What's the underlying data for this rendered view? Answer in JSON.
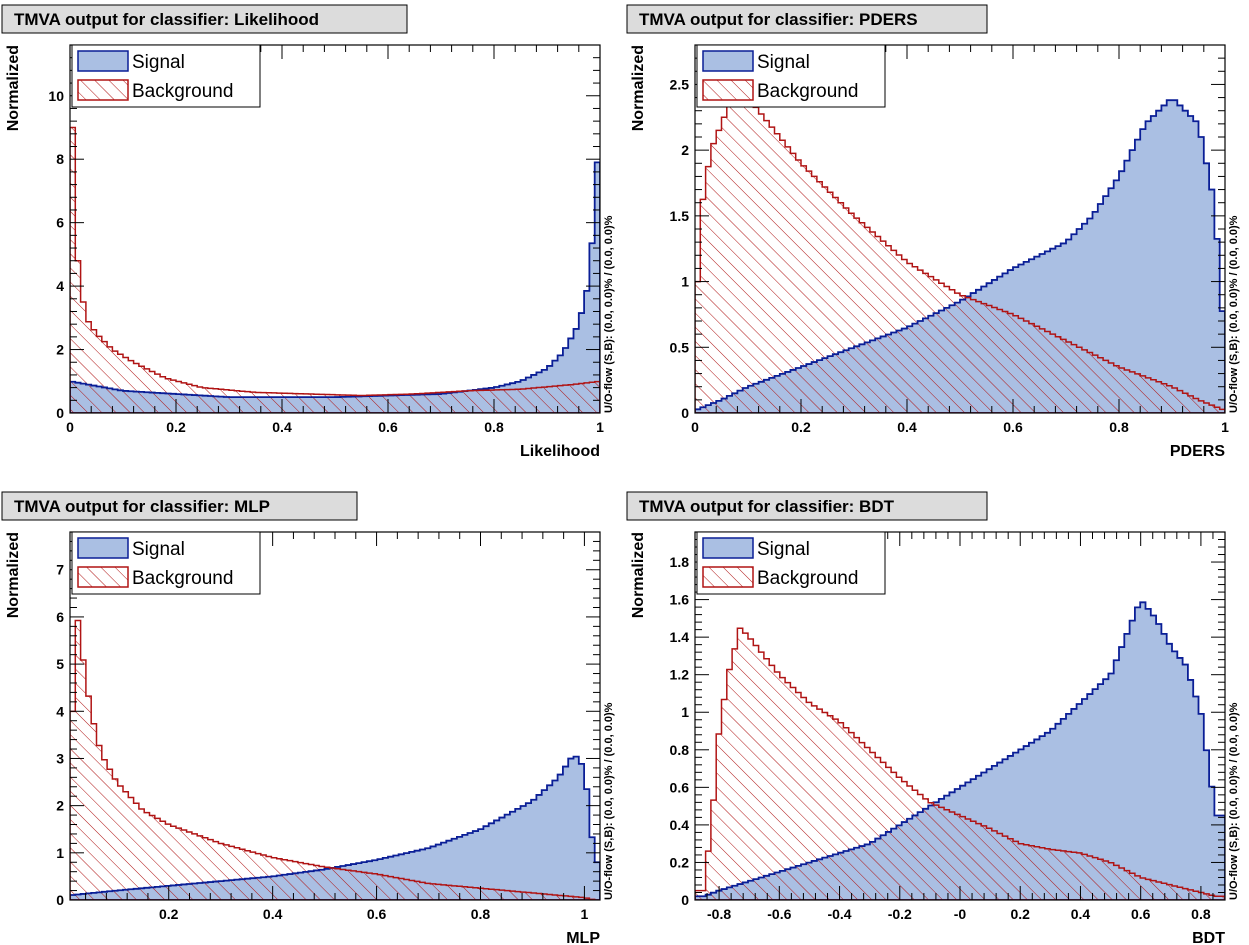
{
  "style": {
    "signal_fill": "#aabfe3",
    "signal_line": "#0a1e96",
    "background_line": "#b01414",
    "title_box": "#dcdcdc"
  },
  "chart_data": [
    {
      "type": "area",
      "title": "TMVA output for classifier: Likelihood",
      "xlabel": "Likelihood",
      "ylabel": "Normalized",
      "side_label": "U/O-flow (S,B): (0.0, 0.0)% / (0.0, 0.0)%",
      "xlim": [
        0,
        1
      ],
      "ylim": [
        0,
        11.6
      ],
      "xticks": [
        0,
        0.2,
        0.4,
        0.6,
        0.8,
        1
      ],
      "xtick_labels": [
        "0",
        "0.2",
        "0.4",
        "0.6",
        "0.8",
        "1"
      ],
      "yticks": [
        0,
        2,
        4,
        6,
        8,
        10
      ],
      "ytick_labels": [
        "0",
        "2",
        "4",
        "6",
        "8",
        "10"
      ],
      "legend": [
        "Signal",
        "Background"
      ],
      "series": [
        {
          "name": "Signal",
          "points": [
            [
              0,
              1.0
            ],
            [
              0.05,
              0.85
            ],
            [
              0.1,
              0.7
            ],
            [
              0.2,
              0.6
            ],
            [
              0.3,
              0.5
            ],
            [
              0.4,
              0.5
            ],
            [
              0.5,
              0.5
            ],
            [
              0.6,
              0.55
            ],
            [
              0.7,
              0.6
            ],
            [
              0.8,
              0.8
            ],
            [
              0.85,
              1.0
            ],
            [
              0.9,
              1.4
            ],
            [
              0.93,
              1.9
            ],
            [
              0.96,
              2.8
            ],
            [
              0.98,
              4.2
            ],
            [
              0.99,
              6.5
            ],
            [
              1.0,
              9.3
            ]
          ]
        },
        {
          "name": "Background",
          "points": [
            [
              0,
              9.8
            ],
            [
              0.005,
              9.0
            ],
            [
              0.01,
              5.6
            ],
            [
              0.02,
              4.0
            ],
            [
              0.03,
              3.0
            ],
            [
              0.05,
              2.5
            ],
            [
              0.08,
              2.0
            ],
            [
              0.12,
              1.6
            ],
            [
              0.18,
              1.1
            ],
            [
              0.25,
              0.8
            ],
            [
              0.35,
              0.65
            ],
            [
              0.45,
              0.6
            ],
            [
              0.55,
              0.55
            ],
            [
              0.65,
              0.6
            ],
            [
              0.75,
              0.7
            ],
            [
              0.85,
              0.75
            ],
            [
              0.95,
              0.9
            ],
            [
              1.0,
              1.0
            ]
          ]
        }
      ]
    },
    {
      "type": "area",
      "title": "TMVA output for classifier: PDERS",
      "xlabel": "PDERS",
      "ylabel": "Normalized",
      "side_label": "U/O-flow (S,B): (0.0, 0.0)% / (0.0, 0.0)%",
      "xlim": [
        0,
        1
      ],
      "ylim": [
        0,
        2.8
      ],
      "xticks": [
        0,
        0.2,
        0.4,
        0.6,
        0.8,
        1
      ],
      "xtick_labels": [
        "0",
        "0.2",
        "0.4",
        "0.6",
        "0.8",
        "1"
      ],
      "yticks": [
        0,
        0.5,
        1,
        1.5,
        2,
        2.5
      ],
      "ytick_labels": [
        "0",
        "0.5",
        "1",
        "1.5",
        "2",
        "2.5"
      ],
      "legend": [
        "Signal",
        "Background"
      ],
      "series": [
        {
          "name": "Signal",
          "points": [
            [
              0,
              0.02
            ],
            [
              0.05,
              0.1
            ],
            [
              0.1,
              0.2
            ],
            [
              0.2,
              0.35
            ],
            [
              0.3,
              0.5
            ],
            [
              0.4,
              0.65
            ],
            [
              0.5,
              0.85
            ],
            [
              0.6,
              1.1
            ],
            [
              0.7,
              1.3
            ],
            [
              0.75,
              1.5
            ],
            [
              0.8,
              1.8
            ],
            [
              0.85,
              2.2
            ],
            [
              0.9,
              2.4
            ],
            [
              0.95,
              2.2
            ],
            [
              0.98,
              1.6
            ],
            [
              1.0,
              0.5
            ]
          ]
        },
        {
          "name": "Background",
          "points": [
            [
              0,
              0.5
            ],
            [
              0.01,
              1.5
            ],
            [
              0.03,
              2.0
            ],
            [
              0.06,
              2.3
            ],
            [
              0.08,
              2.45
            ],
            [
              0.1,
              2.4
            ],
            [
              0.15,
              2.15
            ],
            [
              0.2,
              1.9
            ],
            [
              0.3,
              1.5
            ],
            [
              0.4,
              1.15
            ],
            [
              0.5,
              0.9
            ],
            [
              0.6,
              0.75
            ],
            [
              0.7,
              0.55
            ],
            [
              0.8,
              0.35
            ],
            [
              0.9,
              0.2
            ],
            [
              0.95,
              0.1
            ],
            [
              1.0,
              0.02
            ]
          ]
        }
      ]
    },
    {
      "type": "area",
      "title": "TMVA output for classifier: MLP",
      "xlabel": "MLP",
      "ylabel": "Normalized",
      "side_label": "U/O-flow (S,B): (0.0, 0.0)% / (0.0, 0.0)%",
      "xlim": [
        0.01,
        1.03
      ],
      "ylim": [
        0,
        7.8
      ],
      "xticks": [
        0.2,
        0.4,
        0.6,
        0.8,
        1
      ],
      "xtick_labels": [
        "0.2",
        "0.4",
        "0.6",
        "0.8",
        "1"
      ],
      "yticks": [
        0,
        1,
        2,
        3,
        4,
        5,
        6,
        7
      ],
      "ytick_labels": [
        "0",
        "1",
        "2",
        "3",
        "4",
        "5",
        "6",
        "7"
      ],
      "legend": [
        "Signal",
        "Background"
      ],
      "series": [
        {
          "name": "Signal",
          "points": [
            [
              0.01,
              0.1
            ],
            [
              0.1,
              0.2
            ],
            [
              0.2,
              0.3
            ],
            [
              0.3,
              0.4
            ],
            [
              0.4,
              0.5
            ],
            [
              0.5,
              0.65
            ],
            [
              0.6,
              0.85
            ],
            [
              0.7,
              1.1
            ],
            [
              0.8,
              1.5
            ],
            [
              0.85,
              1.8
            ],
            [
              0.9,
              2.1
            ],
            [
              0.95,
              2.6
            ],
            [
              0.98,
              3.1
            ],
            [
              1.0,
              2.8
            ],
            [
              1.02,
              0.8
            ]
          ]
        },
        {
          "name": "Background",
          "points": [
            [
              0.01,
              1.5
            ],
            [
              0.02,
              6.4
            ],
            [
              0.03,
              5.5
            ],
            [
              0.05,
              4.0
            ],
            [
              0.07,
              3.1
            ],
            [
              0.1,
              2.5
            ],
            [
              0.15,
              1.9
            ],
            [
              0.2,
              1.6
            ],
            [
              0.3,
              1.2
            ],
            [
              0.4,
              0.9
            ],
            [
              0.5,
              0.7
            ],
            [
              0.6,
              0.55
            ],
            [
              0.7,
              0.35
            ],
            [
              0.8,
              0.25
            ],
            [
              0.9,
              0.15
            ],
            [
              1.0,
              0.05
            ],
            [
              1.02,
              0.0
            ]
          ]
        }
      ]
    },
    {
      "type": "area",
      "title": "TMVA output for classifier: BDT",
      "xlabel": "BDT",
      "ylabel": "Normalized",
      "side_label": "U/O-flow (S,B): (0.0, 0.0)% / (0.0, 0.0)%",
      "xlim": [
        -0.88,
        0.88
      ],
      "ylim": [
        0,
        1.96
      ],
      "xticks": [
        -0.8,
        -0.6,
        -0.4,
        -0.2,
        0,
        0.2,
        0.4,
        0.6,
        0.8
      ],
      "xtick_labels": [
        "-0.8",
        "-0.6",
        "-0.4",
        "-0.2",
        "-0",
        "0.2",
        "0.4",
        "0.6",
        "0.8"
      ],
      "yticks": [
        0,
        0.2,
        0.4,
        0.6,
        0.8,
        1,
        1.2,
        1.4,
        1.6,
        1.8
      ],
      "ytick_labels": [
        "0",
        "0.2",
        "0.4",
        "0.6",
        "0.8",
        "1",
        "1.2",
        "1.4",
        "1.6",
        "1.8"
      ],
      "legend": [
        "Signal",
        "Background"
      ],
      "series": [
        {
          "name": "Signal",
          "points": [
            [
              -0.85,
              0.02
            ],
            [
              -0.8,
              0.05
            ],
            [
              -0.7,
              0.1
            ],
            [
              -0.6,
              0.15
            ],
            [
              -0.5,
              0.2
            ],
            [
              -0.4,
              0.25
            ],
            [
              -0.3,
              0.3
            ],
            [
              -0.2,
              0.4
            ],
            [
              -0.1,
              0.5
            ],
            [
              0,
              0.6
            ],
            [
              0.1,
              0.7
            ],
            [
              0.2,
              0.8
            ],
            [
              0.3,
              0.9
            ],
            [
              0.4,
              1.05
            ],
            [
              0.5,
              1.2
            ],
            [
              0.55,
              1.4
            ],
            [
              0.6,
              1.6
            ],
            [
              0.65,
              1.5
            ],
            [
              0.7,
              1.35
            ],
            [
              0.75,
              1.25
            ],
            [
              0.8,
              1.0
            ],
            [
              0.85,
              0.45
            ]
          ]
        },
        {
          "name": "Background",
          "points": [
            [
              -0.85,
              0.05
            ],
            [
              -0.82,
              0.5
            ],
            [
              -0.8,
              0.9
            ],
            [
              -0.77,
              1.2
            ],
            [
              -0.73,
              1.45
            ],
            [
              -0.7,
              1.4
            ],
            [
              -0.65,
              1.3
            ],
            [
              -0.6,
              1.2
            ],
            [
              -0.5,
              1.05
            ],
            [
              -0.4,
              0.95
            ],
            [
              -0.3,
              0.8
            ],
            [
              -0.2,
              0.65
            ],
            [
              -0.1,
              0.52
            ],
            [
              0,
              0.45
            ],
            [
              0.1,
              0.38
            ],
            [
              0.2,
              0.3
            ],
            [
              0.3,
              0.27
            ],
            [
              0.4,
              0.25
            ],
            [
              0.5,
              0.2
            ],
            [
              0.6,
              0.12
            ],
            [
              0.7,
              0.08
            ],
            [
              0.8,
              0.04
            ],
            [
              0.85,
              0.02
            ]
          ]
        }
      ]
    }
  ]
}
